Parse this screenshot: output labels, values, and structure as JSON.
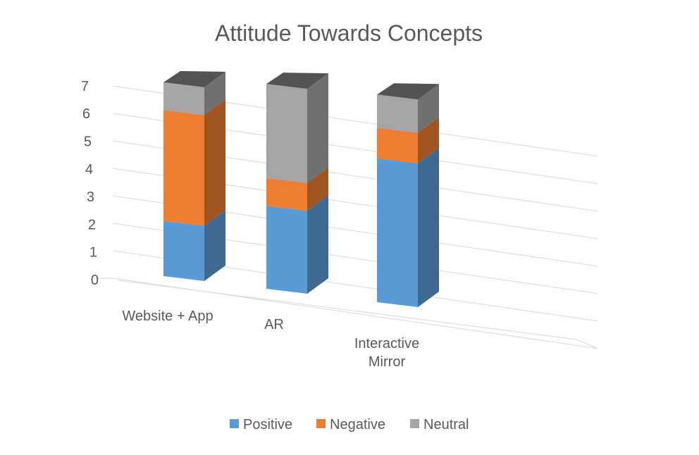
{
  "chart_data": {
    "type": "bar",
    "stacked": true,
    "three_d": true,
    "title": "Attitude Towards Concepts",
    "categories": [
      "Website + App",
      "AR",
      "Interactive Mirror"
    ],
    "series": [
      {
        "name": "Positive",
        "color": "#5b9bd5",
        "values": [
          2,
          3,
          5.2
        ]
      },
      {
        "name": "Negative",
        "color": "#ed7d31",
        "values": [
          4,
          1,
          1.1
        ]
      },
      {
        "name": "Neutral",
        "color": "#a5a5a5",
        "values": [
          1,
          3.4,
          1.2
        ]
      }
    ],
    "y_ticks": [
      "0",
      "1",
      "2",
      "3",
      "4",
      "5",
      "6",
      "7"
    ],
    "ylim": [
      0,
      7
    ],
    "grid": true,
    "legend_position": "bottom"
  }
}
